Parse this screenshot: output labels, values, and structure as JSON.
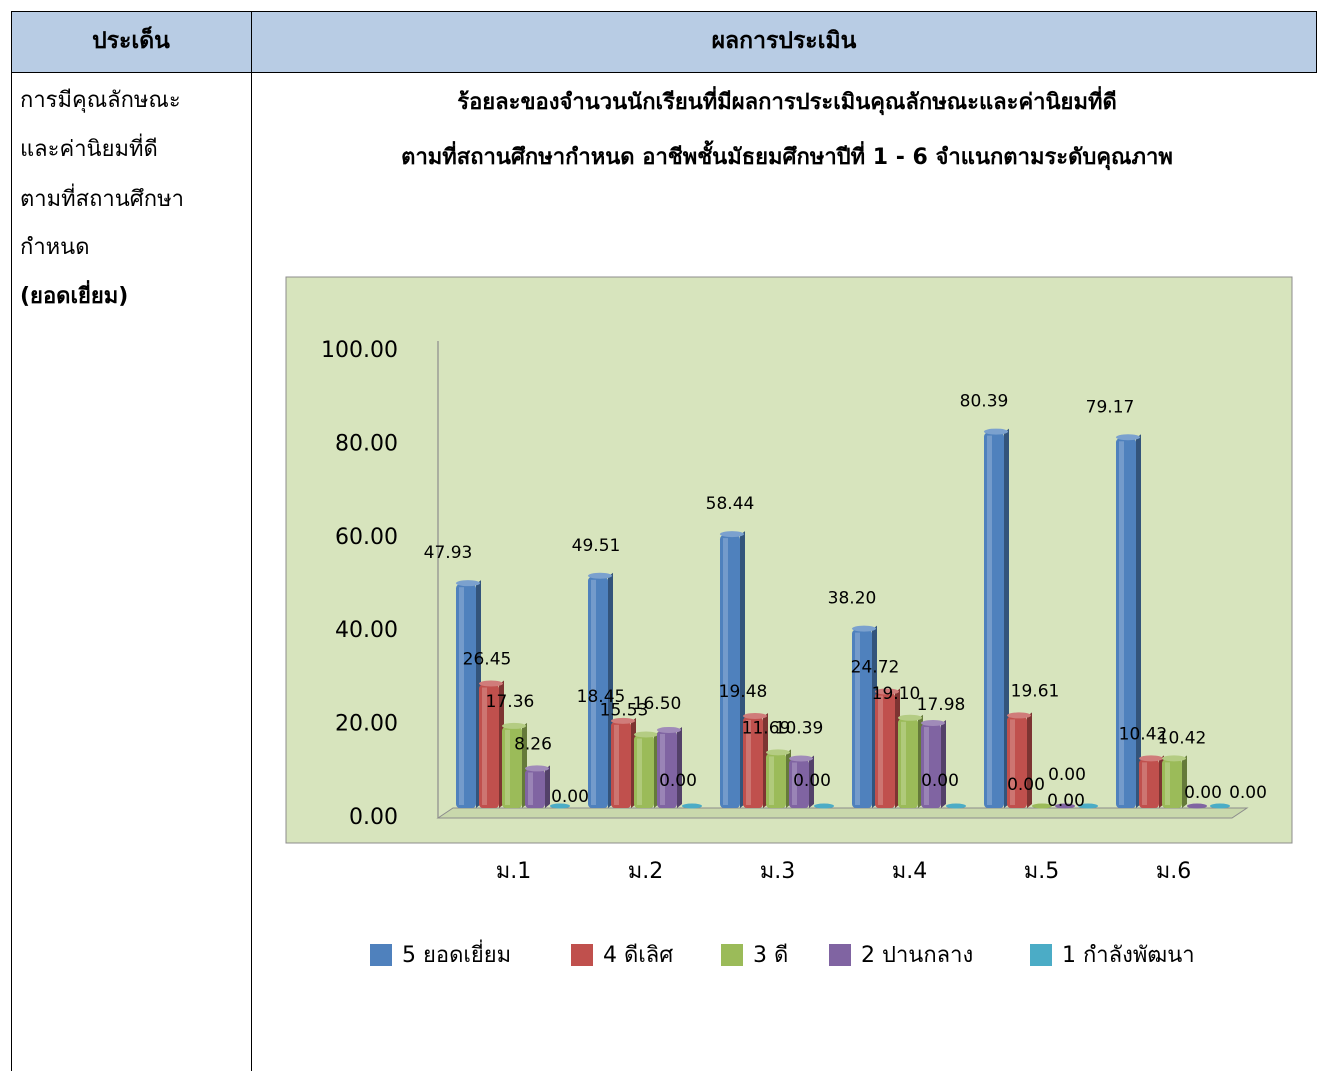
{
  "table": {
    "header": {
      "col1": "ประเด็น",
      "col2": "ผลการประเมิน"
    },
    "issue_lines": [
      "การมีคุณลักษณะ",
      "และค่านิยมที่ดี",
      "ตามที่สถานศึกษา",
      "กำหนด"
    ],
    "issue_rating": "(ยอดเยี่ยม)",
    "header_color": "#b8cce4"
  },
  "chart_data": {
    "type": "bar",
    "title": "ร้อยละของจำนวนนักเรียนที่มีผลการประเมินคุณลักษณะและค่านิยมที่ดี",
    "subtitle": "ตามที่สถานศึกษากำหนด  อาชีพชั้นมัธยมศึกษาปีที่ 1 - 6 จำแนกตามระดับคุณภาพ",
    "categories": [
      "ม.1",
      "ม.2",
      "ม.3",
      "ม.4",
      "ม.5",
      "ม.6"
    ],
    "series": [
      {
        "name": "5 ยอดเยี่ยม",
        "values": [
          47.93,
          49.51,
          58.44,
          38.2,
          80.39,
          79.17
        ],
        "labels": [
          "47.93",
          "49.51",
          "58.44",
          "38.20",
          "80.39",
          "79.17"
        ],
        "color": "#4f81bd"
      },
      {
        "name": "4 ดีเลิศ",
        "values": [
          26.45,
          18.45,
          19.48,
          24.72,
          19.61,
          10.42
        ],
        "labels": [
          "26.45",
          "18.45",
          "19.48",
          "24.72",
          "19.61",
          "10.42"
        ],
        "color": "#c0504d"
      },
      {
        "name": "3 ดี",
        "values": [
          17.36,
          15.53,
          11.69,
          19.1,
          0.0,
          10.42
        ],
        "labels": [
          "17.36",
          "15.53",
          "11.69",
          "19.10",
          "0.00",
          "10.42"
        ],
        "color": "#9bbb59"
      },
      {
        "name": "2 ปานกลาง",
        "values": [
          8.26,
          16.5,
          10.39,
          17.98,
          0.0,
          0.0
        ],
        "labels": [
          "8.26",
          "16.50",
          "10.39",
          "17.98",
          "0.00",
          "0.00"
        ],
        "color": "#8064a2"
      },
      {
        "name": "1 กำลังพัฒนา",
        "values": [
          0.0,
          0.0,
          0.0,
          0.0,
          0.0,
          0.0
        ],
        "labels": [
          "0.00",
          "0.00",
          "0.00",
          "0.00",
          "0.00",
          "0.00"
        ],
        "color": "#4bacc6"
      }
    ],
    "ylim": [
      0,
      100
    ],
    "yticks": [
      "0.00",
      "20.00",
      "40.00",
      "60.00",
      "80.00",
      "100.00"
    ],
    "legend_position": "bottom",
    "grid": false,
    "background_color": "#d7e4bd"
  }
}
